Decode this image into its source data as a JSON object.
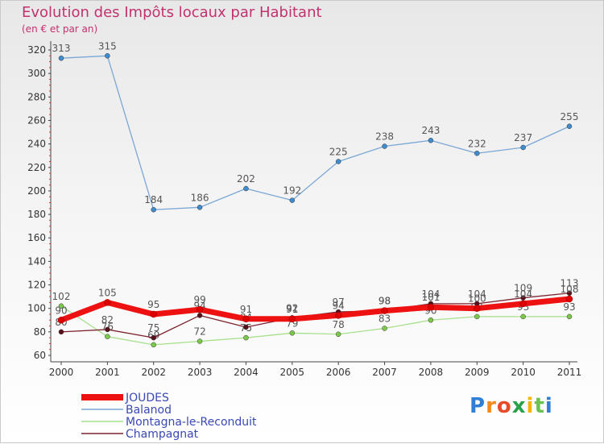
{
  "chart_data": {
    "type": "line",
    "title": "Evolution des Impôts locaux par Habitant",
    "subtitle": "(en € et par an)",
    "categories": [
      "2000",
      "2001",
      "2002",
      "2003",
      "2004",
      "2005",
      "2006",
      "2007",
      "2008",
      "2009",
      "2010",
      "2011"
    ],
    "ylim": [
      60,
      320
    ],
    "yticks": [
      60,
      80,
      100,
      120,
      140,
      160,
      180,
      200,
      220,
      240,
      260,
      280,
      300,
      320
    ],
    "grid": false,
    "legend_position": "bottom-left",
    "series": [
      {
        "name": "Balanod",
        "color": "#7aa7d6",
        "marker": "#3f8ccf",
        "values": [
          313,
          315,
          184,
          186,
          202,
          192,
          225,
          238,
          243,
          232,
          237,
          255
        ]
      },
      {
        "name": "Montagna-le-Reconduit",
        "color": "#a6e08a",
        "marker": "#7cc94a",
        "values": [
          102,
          76,
          69,
          72,
          75,
          79,
          78,
          83,
          90,
          93,
          93,
          93
        ]
      },
      {
        "name": "Champagnat",
        "color": "#7d2430",
        "marker": "#5a1019",
        "values": [
          80,
          82,
          75,
          94,
          84,
          92,
          97,
          98,
          104,
          104,
          109,
          113
        ]
      },
      {
        "name": "JOUDES",
        "color": "#ee1111",
        "marker": "#dd0000",
        "values": [
          90,
          105,
          95,
          99,
          91,
          91,
          94,
          98,
          101,
          100,
          104,
          108
        ]
      }
    ],
    "legend": [
      "JOUDES",
      "Balanod",
      "Montagna-le-Reconduit",
      "Champagnat"
    ]
  },
  "branding": {
    "letters": [
      "P",
      "r",
      "o",
      "x",
      "i",
      "t",
      "i"
    ],
    "colors": [
      "#2f7fd6",
      "#f08a1c",
      "#e94a2a",
      "#2aa24a",
      "#f4b400",
      "#6cc24a",
      "#2f7fd6"
    ]
  }
}
